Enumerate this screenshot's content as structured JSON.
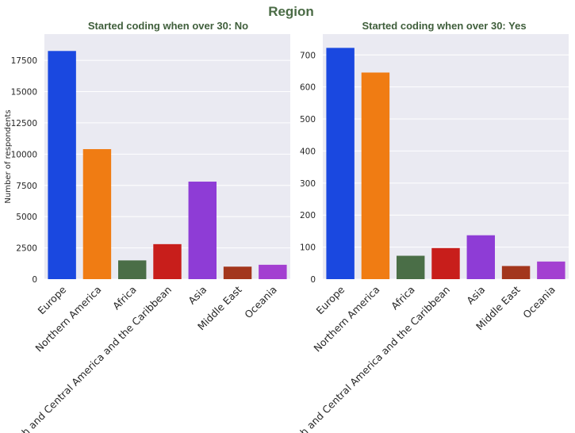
{
  "figure": {
    "title": "Region",
    "title_color": "#4a6b45",
    "subtitle_color": "#3f5e3b",
    "plot_background": "#eaeaf2",
    "grid_color": "#ffffff"
  },
  "chart_data": [
    {
      "type": "bar",
      "title": "Started coding when over 30: No",
      "xlabel": "",
      "ylabel": "Number of respondents",
      "categories": [
        "Europe",
        "Northern America",
        "Africa",
        "South and Central America and the Caribbean",
        "Asia",
        "Middle East",
        "Oceania"
      ],
      "values": [
        18250,
        10400,
        1500,
        2800,
        7800,
        1000,
        1150
      ],
      "colors": [
        "#1a48e0",
        "#f07c13",
        "#4a6e47",
        "#c81e1b",
        "#8e3cd6",
        "#a3361d",
        "#a33fd1"
      ],
      "ylim": [
        0,
        19600
      ],
      "yticks": [
        0,
        2500,
        5000,
        7500,
        10000,
        12500,
        15000,
        17500
      ],
      "grid": true
    },
    {
      "type": "bar",
      "title": "Started coding when over 30: Yes",
      "xlabel": "",
      "ylabel": "",
      "categories": [
        "Europe",
        "Northern America",
        "Africa",
        "South and Central America and the Caribbean",
        "Asia",
        "Middle East",
        "Oceania"
      ],
      "values": [
        722,
        645,
        73,
        97,
        137,
        41,
        55
      ],
      "colors": [
        "#1a48e0",
        "#f07c13",
        "#4a6e47",
        "#c81e1b",
        "#8e3cd6",
        "#a3361d",
        "#a33fd1"
      ],
      "ylim": [
        0,
        765
      ],
      "yticks": [
        0,
        100,
        200,
        300,
        400,
        500,
        600,
        700
      ],
      "grid": true
    }
  ]
}
